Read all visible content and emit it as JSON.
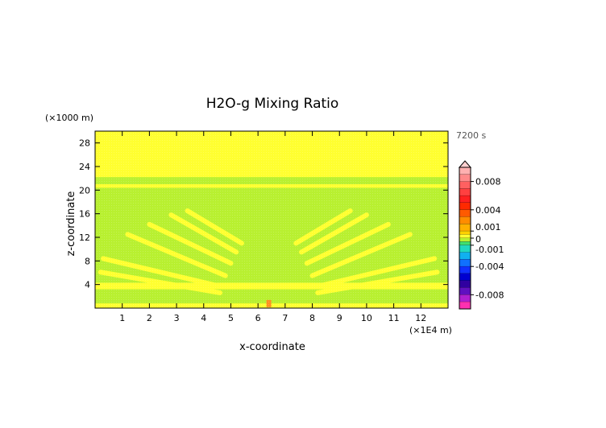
{
  "chart_data": {
    "type": "heatmap",
    "title": "H2O-g Mixing Ratio",
    "time_label": "7200 s",
    "xlabel": "x-coordinate",
    "ylabel": "z-coordinate",
    "x_unit": "(×1E4 m)",
    "y_unit": "(×1000 m)",
    "xlim": [
      0,
      13
    ],
    "ylim": [
      0,
      30
    ],
    "x_ticks": [
      1,
      2,
      3,
      4,
      5,
      6,
      7,
      8,
      9,
      10,
      11,
      12
    ],
    "y_ticks": [
      4,
      8,
      12,
      16,
      20,
      24,
      28
    ],
    "grid": false,
    "colorbar": {
      "placement": "right",
      "tick_labels": [
        "0.008",
        "0.004",
        "0.001",
        "0",
        "-0.001",
        "-0.004",
        "-0.008"
      ],
      "tick_values": [
        0.008,
        0.004,
        0.001,
        0,
        -0.001,
        -0.004,
        -0.008
      ],
      "range": [
        -0.01,
        0.01
      ],
      "bands": [
        {
          "from": 0.009,
          "to": 0.01,
          "color": "#ffb0b0"
        },
        {
          "from": 0.008,
          "to": 0.009,
          "color": "#ff8a8a"
        },
        {
          "from": 0.007,
          "to": 0.008,
          "color": "#ff6060"
        },
        {
          "from": 0.006,
          "to": 0.007,
          "color": "#ff4040"
        },
        {
          "from": 0.005,
          "to": 0.006,
          "color": "#ff2020"
        },
        {
          "from": 0.004,
          "to": 0.005,
          "color": "#ff2a00"
        },
        {
          "from": 0.003,
          "to": 0.004,
          "color": "#ff5a00"
        },
        {
          "from": 0.002,
          "to": 0.003,
          "color": "#ff8c00"
        },
        {
          "from": 0.001,
          "to": 0.002,
          "color": "#ffb000"
        },
        {
          "from": 0.0005,
          "to": 0.001,
          "color": "#ffd000"
        },
        {
          "from": 0,
          "to": 0.0005,
          "color": "#ffff30"
        },
        {
          "from": -0.0005,
          "to": 0,
          "color": "#b8f030"
        },
        {
          "from": -0.001,
          "to": -0.0005,
          "color": "#40e070"
        },
        {
          "from": -0.002,
          "to": -0.001,
          "color": "#20d8c0"
        },
        {
          "from": -0.003,
          "to": -0.002,
          "color": "#10b0f0"
        },
        {
          "from": -0.004,
          "to": -0.003,
          "color": "#1070ff"
        },
        {
          "from": -0.005,
          "to": -0.004,
          "color": "#1030ff"
        },
        {
          "from": -0.006,
          "to": -0.005,
          "color": "#0000d0"
        },
        {
          "from": -0.007,
          "to": -0.006,
          "color": "#3000a0"
        },
        {
          "from": -0.008,
          "to": -0.007,
          "color": "#6010c0"
        },
        {
          "from": -0.009,
          "to": -0.008,
          "color": "#b020d0"
        },
        {
          "from": -0.01,
          "to": -0.009,
          "color": "#ff30b0"
        }
      ]
    },
    "field": {
      "background_color": "#b8f030",
      "positive_color": "#ffff30",
      "peak_color": "#ff9020",
      "regions": [
        {
          "kind": "band",
          "z_from": 22.2,
          "z_to": 30,
          "value": 0.0003
        },
        {
          "kind": "band",
          "z_from": 20.4,
          "z_to": 21.0,
          "value": 0.0003
        },
        {
          "kind": "band",
          "z_from": 3.2,
          "z_to": 4.3,
          "value": 0.0003
        },
        {
          "kind": "band",
          "z_from": 0,
          "z_to": 0.8,
          "value": 0.0003
        },
        {
          "kind": "peak",
          "x": 6.4,
          "z": 0.7,
          "value": 0.0012
        }
      ],
      "wave_rays": {
        "value": 0.0003,
        "center_x": 6.4,
        "left_start": [
          [
            0.2,
            6.1
          ],
          [
            0.3,
            8.4
          ],
          [
            1.2,
            12.5
          ],
          [
            2.0,
            14.2
          ],
          [
            2.8,
            15.8
          ],
          [
            3.4,
            16.5
          ]
        ],
        "left_end": [
          [
            4.6,
            2.6
          ],
          [
            4.6,
            3.7
          ],
          [
            4.8,
            5.5
          ],
          [
            5.0,
            7.6
          ],
          [
            5.2,
            9.5
          ],
          [
            5.4,
            11.0
          ]
        ]
      }
    }
  }
}
